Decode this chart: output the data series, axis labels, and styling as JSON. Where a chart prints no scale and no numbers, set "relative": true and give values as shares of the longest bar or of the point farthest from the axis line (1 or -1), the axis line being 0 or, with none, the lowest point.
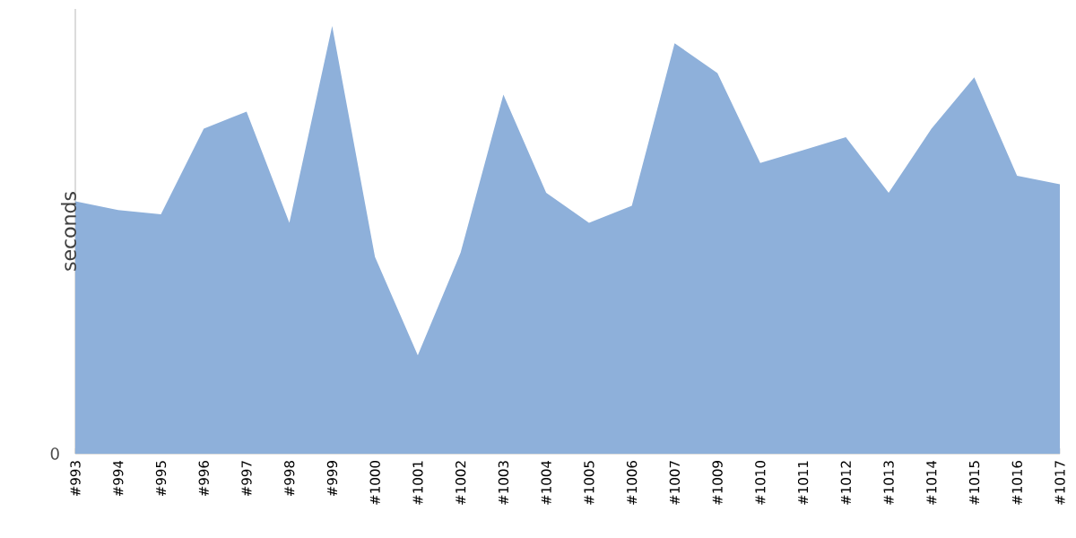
{
  "chart_data": {
    "type": "area",
    "ylabel": "seconds",
    "relative": true,
    "color": "#8eb0da",
    "categories": [
      "#993",
      "#994",
      "#995",
      "#996",
      "#997",
      "#998",
      "#999",
      "#1000",
      "#1001",
      "#1002",
      "#1003",
      "#1004",
      "#1005",
      "#1006",
      "#1007",
      "#1009",
      "#1010",
      "#1011",
      "#1012",
      "#1013",
      "#1014",
      "#1015",
      "#1016",
      "#1017"
    ],
    "values": [
      0.59,
      0.57,
      0.56,
      0.76,
      0.8,
      0.54,
      1,
      0.46,
      0.23,
      0.47,
      0.84,
      0.61,
      0.54,
      0.58,
      0.96,
      0.89,
      0.68,
      0.71,
      0.74,
      0.61,
      0.76,
      0.88,
      0.65,
      0.63
    ],
    "annotations": [
      "0"
    ]
  }
}
